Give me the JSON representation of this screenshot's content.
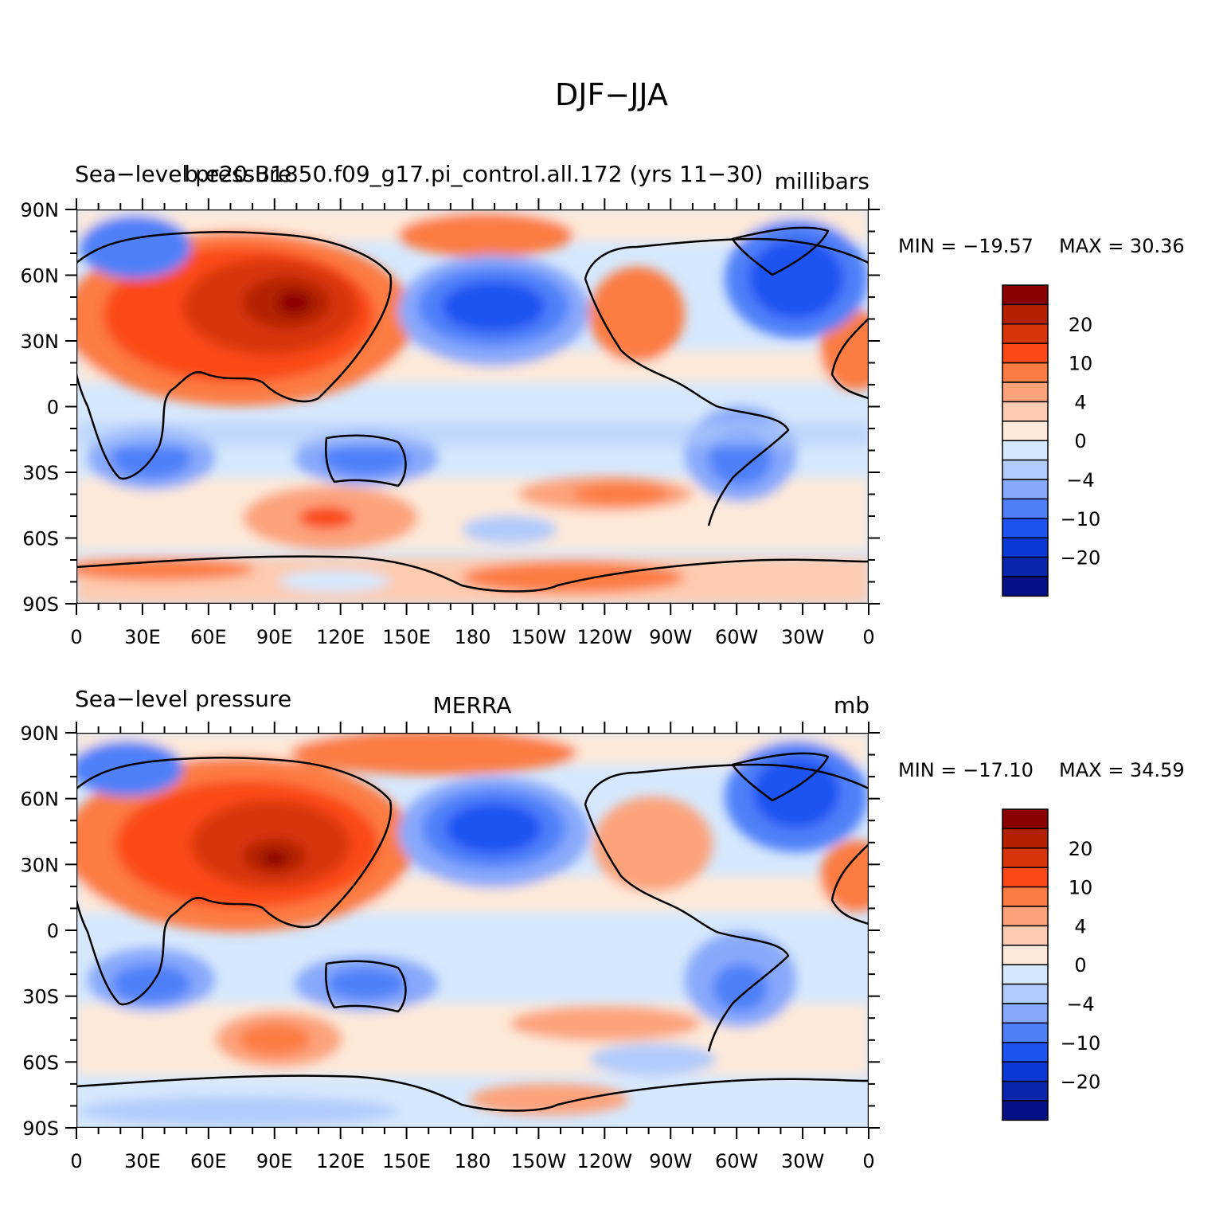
{
  "figure": {
    "title": "DJF−JJA"
  },
  "panels": [
    {
      "id": "model",
      "left_title": "Sea−level pressure",
      "center_title": "b.e20.B1850.f09_g17.pi_control.all.172 (yrs 11−30)",
      "right_title": "millibars",
      "stats": {
        "min_label": "MIN = −19.57",
        "max_label": "MAX =   30.36"
      }
    },
    {
      "id": "obs",
      "left_title": "Sea−level pressure",
      "center_title": "MERRA",
      "right_title": "mb",
      "stats": {
        "min_label": "MIN = −17.10",
        "max_label": "MAX =   34.59"
      }
    }
  ],
  "axes": {
    "lat_labels": [
      "90N",
      "60N",
      "30N",
      "0",
      "30S",
      "60S",
      "90S"
    ],
    "lon_labels": [
      "0",
      "30E",
      "60E",
      "90E",
      "120E",
      "150E",
      "180",
      "150W",
      "120W",
      "90W",
      "60W",
      "30W",
      "0"
    ]
  },
  "colorbar": {
    "colors": [
      "#8b0000",
      "#b22200",
      "#d8340a",
      "#fb4a16",
      "#fc7b42",
      "#fca37c",
      "#fdcbb0",
      "#fde9d9",
      "#d6e8fd",
      "#b1cbfc",
      "#88a9fb",
      "#4f80f9",
      "#1c53f1",
      "#0a38d6",
      "#0a25ad",
      "#060f86"
    ],
    "labels": [
      "20",
      "10",
      "4",
      "0",
      "−4",
      "−10",
      "−20"
    ]
  }
}
